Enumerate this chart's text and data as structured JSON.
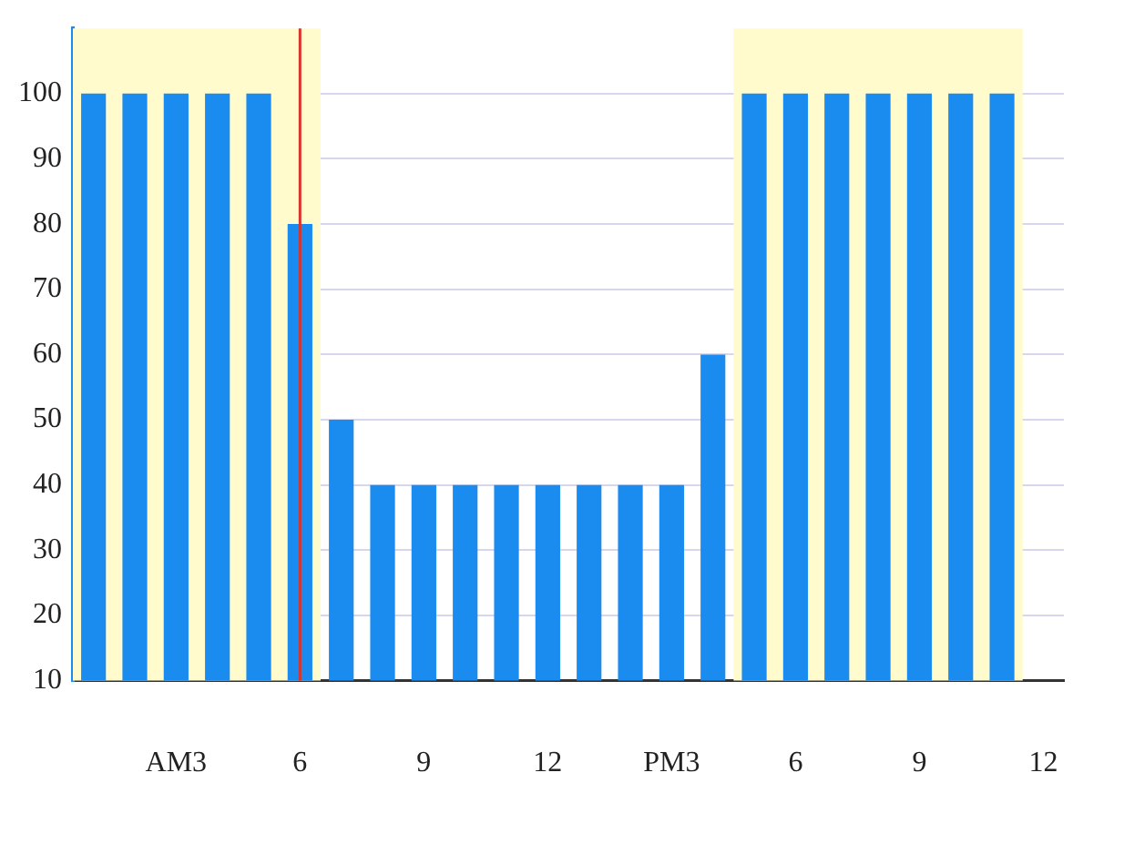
{
  "chart_data": {
    "type": "bar",
    "categories": [
      null,
      null,
      "AM3",
      null,
      null,
      "6",
      null,
      null,
      "9",
      null,
      null,
      "12",
      null,
      null,
      "PM3",
      null,
      null,
      "6",
      null,
      null,
      "9",
      null,
      null,
      "12"
    ],
    "values": [
      100,
      100,
      100,
      100,
      100,
      80,
      50,
      40,
      40,
      40,
      40,
      40,
      40,
      40,
      40,
      60,
      100,
      100,
      100,
      100,
      100,
      100,
      100,
      null
    ],
    "color": "#1a8cf0",
    "ylim": [
      10,
      110
    ],
    "yticks": [
      10,
      20,
      30,
      40,
      50,
      60,
      70,
      80,
      90,
      100
    ],
    "grid": "y",
    "ref_lines": [
      {
        "axis": "x",
        "value": "6",
        "color": "#d9342b"
      }
    ]
  }
}
